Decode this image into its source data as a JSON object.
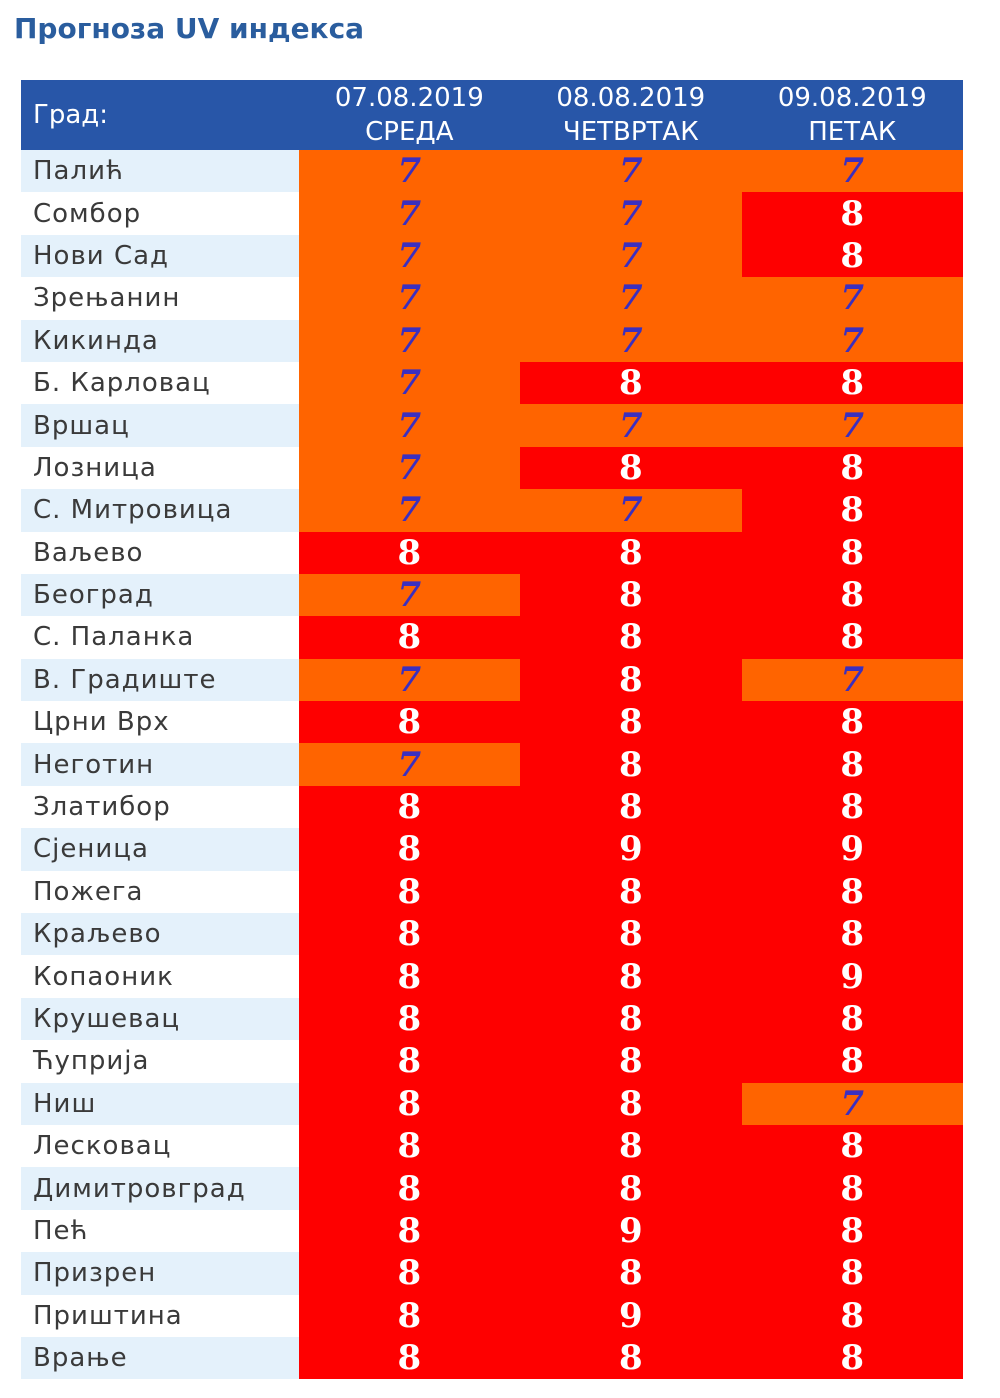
{
  "title": "Прогноза UV индекса",
  "header": {
    "city_label": "Град:",
    "days": [
      {
        "date": "07.08.2019",
        "weekday": "СРЕДА"
      },
      {
        "date": "08.08.2019",
        "weekday": "ЧЕТВРТАК"
      },
      {
        "date": "09.08.2019",
        "weekday": "ПЕТАК"
      }
    ]
  },
  "colors": {
    "header_bg": "#2856a8",
    "title_text": "#2a5d9e",
    "uv_7_bg": "#ff6400",
    "uv_8_9_bg": "#fe0000",
    "uv_7_text": "#3b2fbf",
    "uv_8_9_text": "#ffffff",
    "row_alt_bg": "#e4f1fb"
  },
  "rows": [
    {
      "city": "Палић",
      "values": [
        7,
        7,
        7
      ]
    },
    {
      "city": "Сомбор",
      "values": [
        7,
        7,
        8
      ]
    },
    {
      "city": "Нови Сад",
      "values": [
        7,
        7,
        8
      ]
    },
    {
      "city": "Зрењанин",
      "values": [
        7,
        7,
        7
      ]
    },
    {
      "city": "Кикинда",
      "values": [
        7,
        7,
        7
      ]
    },
    {
      "city": "Б. Карловац",
      "values": [
        7,
        8,
        8
      ]
    },
    {
      "city": "Вршац",
      "values": [
        7,
        7,
        7
      ]
    },
    {
      "city": "Лозница",
      "values": [
        7,
        8,
        8
      ]
    },
    {
      "city": "С. Митровица",
      "values": [
        7,
        7,
        8
      ]
    },
    {
      "city": "Ваљево",
      "values": [
        8,
        8,
        8
      ]
    },
    {
      "city": "Београд",
      "values": [
        7,
        8,
        8
      ]
    },
    {
      "city": "С. Паланка",
      "values": [
        8,
        8,
        8
      ]
    },
    {
      "city": "В. Градиште",
      "values": [
        7,
        8,
        7
      ]
    },
    {
      "city": "Црни Врх",
      "values": [
        8,
        8,
        8
      ]
    },
    {
      "city": "Неготин",
      "values": [
        7,
        8,
        8
      ]
    },
    {
      "city": "Златибор",
      "values": [
        8,
        8,
        8
      ]
    },
    {
      "city": "Сјеница",
      "values": [
        8,
        9,
        9
      ]
    },
    {
      "city": "Пожега",
      "values": [
        8,
        8,
        8
      ]
    },
    {
      "city": "Краљево",
      "values": [
        8,
        8,
        8
      ]
    },
    {
      "city": "Копаоник",
      "values": [
        8,
        8,
        9
      ]
    },
    {
      "city": "Крушевац",
      "values": [
        8,
        8,
        8
      ]
    },
    {
      "city": "Ћуприја",
      "values": [
        8,
        8,
        8
      ]
    },
    {
      "city": "Ниш",
      "values": [
        8,
        8,
        7
      ]
    },
    {
      "city": "Лесковац",
      "values": [
        8,
        8,
        8
      ]
    },
    {
      "city": "Димитровград",
      "values": [
        8,
        8,
        8
      ]
    },
    {
      "city": "Пећ",
      "values": [
        8,
        9,
        8
      ]
    },
    {
      "city": "Призрен",
      "values": [
        8,
        8,
        8
      ]
    },
    {
      "city": "Приштина",
      "values": [
        8,
        9,
        8
      ]
    },
    {
      "city": "Врање",
      "values": [
        8,
        8,
        8
      ]
    }
  ]
}
